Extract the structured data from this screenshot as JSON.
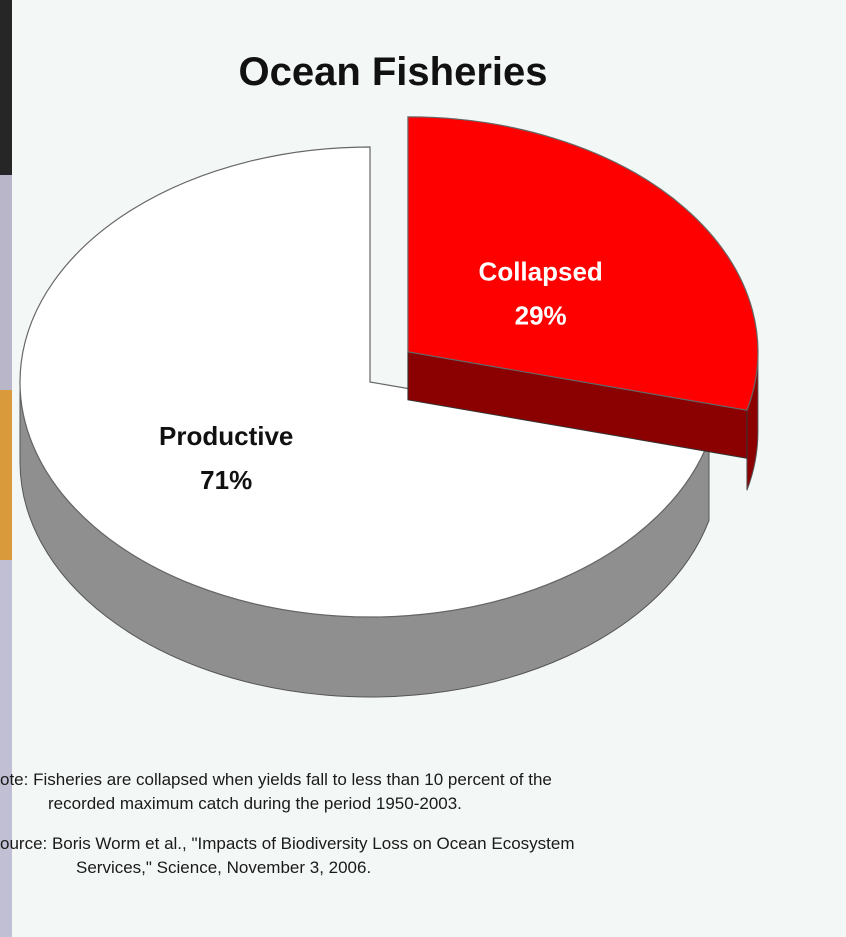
{
  "chart_data": {
    "type": "pie",
    "title": "Ocean Fisheries",
    "slices": [
      {
        "label": "Collapsed",
        "value": 29,
        "value_label": "29%",
        "color": "#ff0000",
        "side_color": "#8b0000",
        "exploded": true
      },
      {
        "label": "Productive",
        "value": 71,
        "value_label": "71%",
        "color": "#ffffff",
        "side_color": "#8f8f8f",
        "exploded": false
      }
    ],
    "legend": "none"
  },
  "notes": {
    "note_line1": "ote: Fisheries are collapsed when yields fall to less than 10 percent of the",
    "note_line2": "recorded maximum catch during the period 1950-2003.",
    "source_line1": "ource: Boris Worm et al., \"Impacts of Biodiversity Loss on Ocean Ecosystem",
    "source_line2": "Services,\" Science, November 3, 2006."
  }
}
